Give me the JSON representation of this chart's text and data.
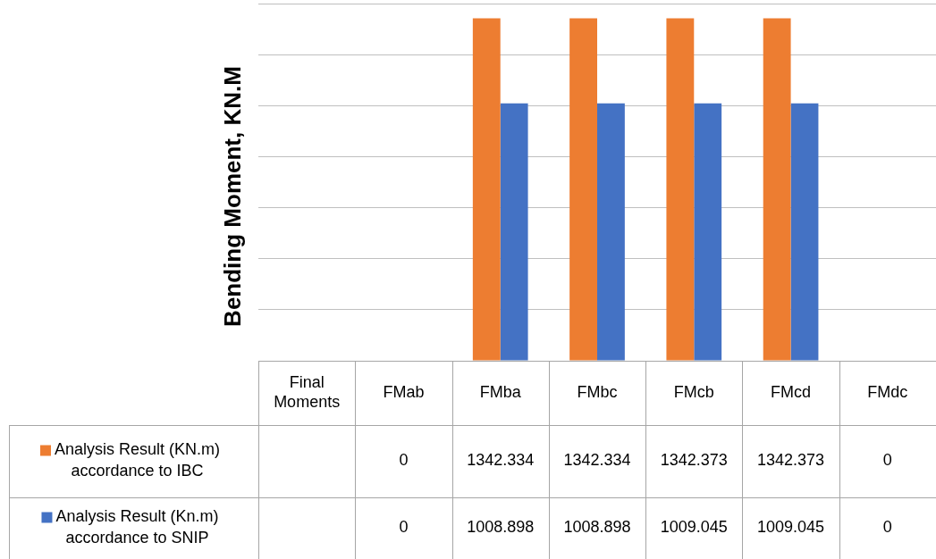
{
  "chart_data": {
    "type": "bar",
    "ylabel": "Bending Moment, KN.M",
    "categories": [
      "Final Moments",
      "FMab",
      "FMba",
      "FMbc",
      "FMcb",
      "FMcd",
      "FMdc"
    ],
    "series": [
      {
        "name": "Analysis Result (KN.m) accordance to IBC",
        "color": "#ed7d31",
        "values": [
          null,
          0,
          1342.334,
          1342.334,
          1342.373,
          1342.373,
          0
        ]
      },
      {
        "name": "Analysis Result (Kn.m) accordance to SNIP",
        "color": "#4472c4",
        "values": [
          null,
          0,
          1008.898,
          1008.898,
          1009.045,
          1009.045,
          0
        ]
      }
    ],
    "ylim": [
      0,
      1400
    ],
    "yticks": [
      {
        "value": 0,
        "label": null
      },
      {
        "value": 200,
        "label": null
      },
      {
        "value": 400,
        "label": null
      },
      {
        "value": 600,
        "label": null
      },
      {
        "value": 800,
        "label": null
      },
      {
        "value": 1000,
        "label": null
      },
      {
        "value": 1200,
        "label": null
      },
      {
        "value": 1400,
        "label": null
      }
    ],
    "grid": "y",
    "legend": "bottom",
    "data_labels": true
  }
}
